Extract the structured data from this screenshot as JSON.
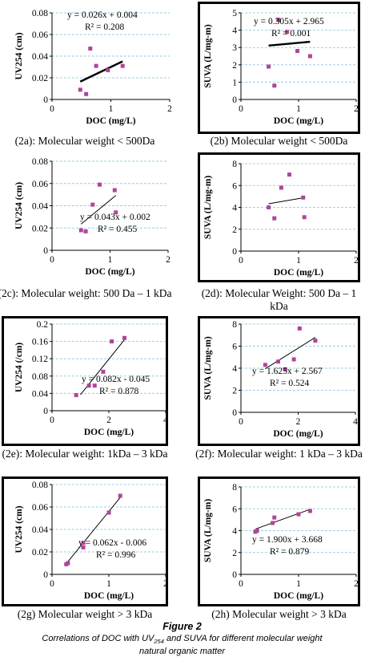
{
  "figure": {
    "title": "Figure 2",
    "caption_pre": "Correlations of DOC with UV",
    "caption_sub": "254",
    "caption_post": " and SUVA for different molecular weight natural organic matter"
  },
  "chart_data": [
    {
      "type": "scatter",
      "caption": "(2a): Molecular weight < 500Da",
      "xlabel": "DOC (mg/L)",
      "ylabel": "UV254 (cm)",
      "xlim": [
        0,
        2
      ],
      "ylim": [
        0,
        0.08
      ],
      "xticks": [
        "0",
        "1",
        "2"
      ],
      "yticks": [
        "0",
        "0.02",
        "0.04",
        "0.06",
        "0.08"
      ],
      "points": [
        [
          0.48,
          0.009
        ],
        [
          0.58,
          0.005
        ],
        [
          0.65,
          0.047
        ],
        [
          0.75,
          0.031
        ],
        [
          0.95,
          0.027
        ],
        [
          1.2,
          0.031
        ]
      ],
      "trendline": {
        "slope": 0.026,
        "intercept": 0.004,
        "x_range": [
          0.48,
          1.2
        ]
      },
      "equation": "y = 0.026x + 0.004",
      "r2": "R² = 0.208",
      "grid": "horizontal",
      "boxed": false
    },
    {
      "type": "scatter",
      "caption": "(2b) Molecular weight < 500Da",
      "xlabel": "DOC (mg/L)",
      "ylabel": "SUVA (L/mg-m)",
      "xlim": [
        0,
        2
      ],
      "ylim": [
        0,
        5
      ],
      "xticks": [
        "0",
        "1",
        "2"
      ],
      "yticks": [
        "0",
        "1",
        "2",
        "3",
        "4",
        "5"
      ],
      "points": [
        [
          0.48,
          1.9
        ],
        [
          0.58,
          0.8
        ],
        [
          0.65,
          4.6
        ],
        [
          0.8,
          3.9
        ],
        [
          0.98,
          2.8
        ],
        [
          1.2,
          2.5
        ]
      ],
      "trendline": {
        "slope": 0.305,
        "intercept": 2.965,
        "x_range": [
          0.48,
          1.2
        ]
      },
      "equation": "y = 0.305x + 2.965",
      "r2": "R² = 0.001",
      "grid": "horizontal",
      "boxed": true
    },
    {
      "type": "scatter",
      "caption": "(2c): Molecular weight: 500 Da – 1 kDa",
      "xlabel": "DOC (mg/L)",
      "ylabel": "UV254 (cm)",
      "xlim": [
        0,
        2
      ],
      "ylim": [
        0,
        0.08
      ],
      "xticks": [
        "0",
        "1",
        "2"
      ],
      "yticks": [
        "0",
        "0.02",
        "0.04",
        "0.06",
        "0.08"
      ],
      "points": [
        [
          0.5,
          0.018
        ],
        [
          0.58,
          0.017
        ],
        [
          0.7,
          0.041
        ],
        [
          0.82,
          0.059
        ],
        [
          1.08,
          0.054
        ],
        [
          1.1,
          0.034
        ]
      ],
      "trendline": {
        "slope": 0.043,
        "intercept": 0.002,
        "x_range": [
          0.5,
          1.1
        ]
      },
      "equation": "y = 0.043x + 0.002",
      "r2": "R² = 0.455",
      "grid": "horizontal",
      "boxed": false
    },
    {
      "type": "scatter",
      "caption": "(2d): Molecular Weight: 500 Da – 1 kDa",
      "xlabel": "DOC (mg/L)",
      "ylabel": "SUVA (L/mg-m)",
      "xlim": [
        0,
        2
      ],
      "ylim": [
        0,
        8
      ],
      "xticks": [
        "0",
        "1",
        "2"
      ],
      "yticks": [
        "0",
        "2",
        "4",
        "6",
        "8"
      ],
      "points": [
        [
          0.48,
          4.0
        ],
        [
          0.58,
          3.0
        ],
        [
          0.7,
          5.8
        ],
        [
          0.84,
          7.0
        ],
        [
          1.08,
          4.9
        ],
        [
          1.1,
          3.1
        ]
      ],
      "trendline": {
        "slope": 0.9,
        "intercept": 3.9,
        "x_range": [
          0.48,
          1.1
        ]
      },
      "equation": "",
      "r2": "",
      "grid": "horizontal",
      "boxed": true
    },
    {
      "type": "scatter",
      "caption": "(2e): Molecular weight: 1kDa – 3 kDa",
      "xlabel": "DOC (mg/L)",
      "ylabel": "UV254 (/cm)",
      "xlim": [
        0,
        4
      ],
      "ylim": [
        0,
        0.2
      ],
      "xticks": [
        "0",
        "2",
        "4"
      ],
      "yticks": [
        "0",
        "0.04",
        "0.08",
        "0.12",
        "0.16",
        "0.2"
      ],
      "points": [
        [
          0.85,
          0.036
        ],
        [
          1.3,
          0.058
        ],
        [
          1.5,
          0.058
        ],
        [
          1.8,
          0.09
        ],
        [
          2.1,
          0.16
        ],
        [
          2.55,
          0.168
        ]
      ],
      "trendline": {
        "slope": 0.082,
        "intercept": -0.045,
        "x_range": [
          1.0,
          2.55
        ]
      },
      "equation": "y = 0.082x - 0.045",
      "r2": "R² = 0.878",
      "grid": "horizontal",
      "boxed": true
    },
    {
      "type": "scatter",
      "caption": "(2f): Molecular weight: 1 kDa – 3 kDa",
      "xlabel": "DOC (mg/L)",
      "ylabel": "SUVA (L/mg-m)",
      "xlim": [
        0,
        4
      ],
      "ylim": [
        0,
        8
      ],
      "xticks": [
        "0",
        "2",
        "4"
      ],
      "yticks": [
        "0",
        "2",
        "4",
        "6",
        "8"
      ],
      "points": [
        [
          0.85,
          4.3
        ],
        [
          1.3,
          4.6
        ],
        [
          1.55,
          3.9
        ],
        [
          1.85,
          4.8
        ],
        [
          2.05,
          7.6
        ],
        [
          2.6,
          6.5
        ]
      ],
      "trendline": {
        "slope": 1.625,
        "intercept": 2.567,
        "x_range": [
          0.85,
          2.6
        ]
      },
      "equation": "y = 1.625x + 2.567",
      "r2": "R² = 0.524",
      "grid": "horizontal",
      "boxed": true
    },
    {
      "type": "scatter",
      "caption": "(2g) Molecular weight > 3 kDa",
      "xlabel": "DOC (mg/L)",
      "ylabel": "UV254 (cm)",
      "xlim": [
        0,
        2
      ],
      "ylim": [
        0,
        0.08
      ],
      "xticks": [
        "0",
        "1",
        "2"
      ],
      "yticks": [
        "0",
        "0.02",
        "0.04",
        "0.06",
        "0.08"
      ],
      "points": [
        [
          0.25,
          0.009
        ],
        [
          0.28,
          0.01
        ],
        [
          0.55,
          0.028
        ],
        [
          0.55,
          0.024
        ],
        [
          1.0,
          0.055
        ],
        [
          1.2,
          0.07
        ]
      ],
      "trendline": {
        "slope": 0.062,
        "intercept": -0.006,
        "x_range": [
          0.25,
          1.2
        ]
      },
      "equation": "y = 0.062x - 0.006",
      "r2": "R² = 0.996",
      "grid": "horizontal",
      "boxed": true
    },
    {
      "type": "scatter",
      "caption": "(2h) Molecular weight > 3 kDa",
      "xlabel": "DOC (mg/L)",
      "ylabel": "SUVA (L/mg-m)",
      "xlim": [
        0,
        2
      ],
      "ylim": [
        0,
        8
      ],
      "xticks": [
        "0",
        "1",
        "2"
      ],
      "yticks": [
        "0",
        "2",
        "4",
        "6",
        "8"
      ],
      "points": [
        [
          0.25,
          3.9
        ],
        [
          0.28,
          4.0
        ],
        [
          0.55,
          4.7
        ],
        [
          0.58,
          5.2
        ],
        [
          1.0,
          5.5
        ],
        [
          1.2,
          5.8
        ]
      ],
      "trendline": {
        "slope": 1.9,
        "intercept": 3.668,
        "x_range": [
          0.25,
          1.2
        ]
      },
      "equation": "y = 1.900x + 3.668",
      "r2": "R² = 0.879",
      "grid": "horizontal",
      "boxed": true
    }
  ],
  "colors": {
    "marker": "#b0449a",
    "grid": "#9ecfe3",
    "line": "#000000"
  }
}
